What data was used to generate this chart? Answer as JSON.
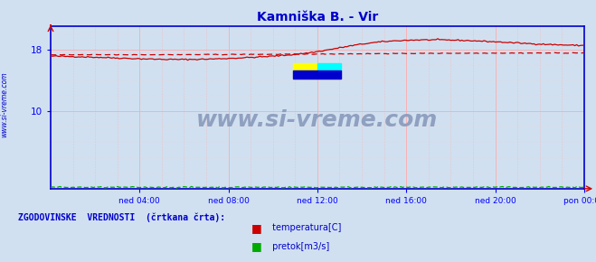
{
  "title": "Kamniška B. - Vir",
  "title_color": "#0000cc",
  "bg_color": "#d0e0f0",
  "plot_bg_color": "#d0e0f0",
  "grid_color": "#ffaaaa",
  "grid_dot_color": "#ffcccc",
  "axis_color": "#0000ff",
  "spine_color": "#0000cc",
  "ytick_vals": [
    10,
    18
  ],
  "ylim": [
    0,
    21
  ],
  "xlim": [
    0,
    288
  ],
  "xtick_labels": [
    "ned 04:00",
    "ned 08:00",
    "ned 12:00",
    "ned 16:00",
    "ned 20:00",
    "pon 00:00"
  ],
  "xtick_positions": [
    48,
    96,
    144,
    192,
    240,
    288
  ],
  "temp_color": "#cc0000",
  "flow_color": "#00aa00",
  "watermark_text": "www.si-vreme.com",
  "watermark_color": "#8899bb",
  "sidebar_text": "www.si-vreme.com",
  "sidebar_color": "#0000cc",
  "legend_label1": " temperatura[C]",
  "legend_label2": " pretok[m3/s]",
  "legend_title": "ZGODOVINSKE  VREDNOSTI  (črtkana črta):",
  "legend_title_color": "#0000cc",
  "legend_text_color": "#0000cc",
  "legend_color1": "#cc0000",
  "legend_color2": "#00aa00"
}
